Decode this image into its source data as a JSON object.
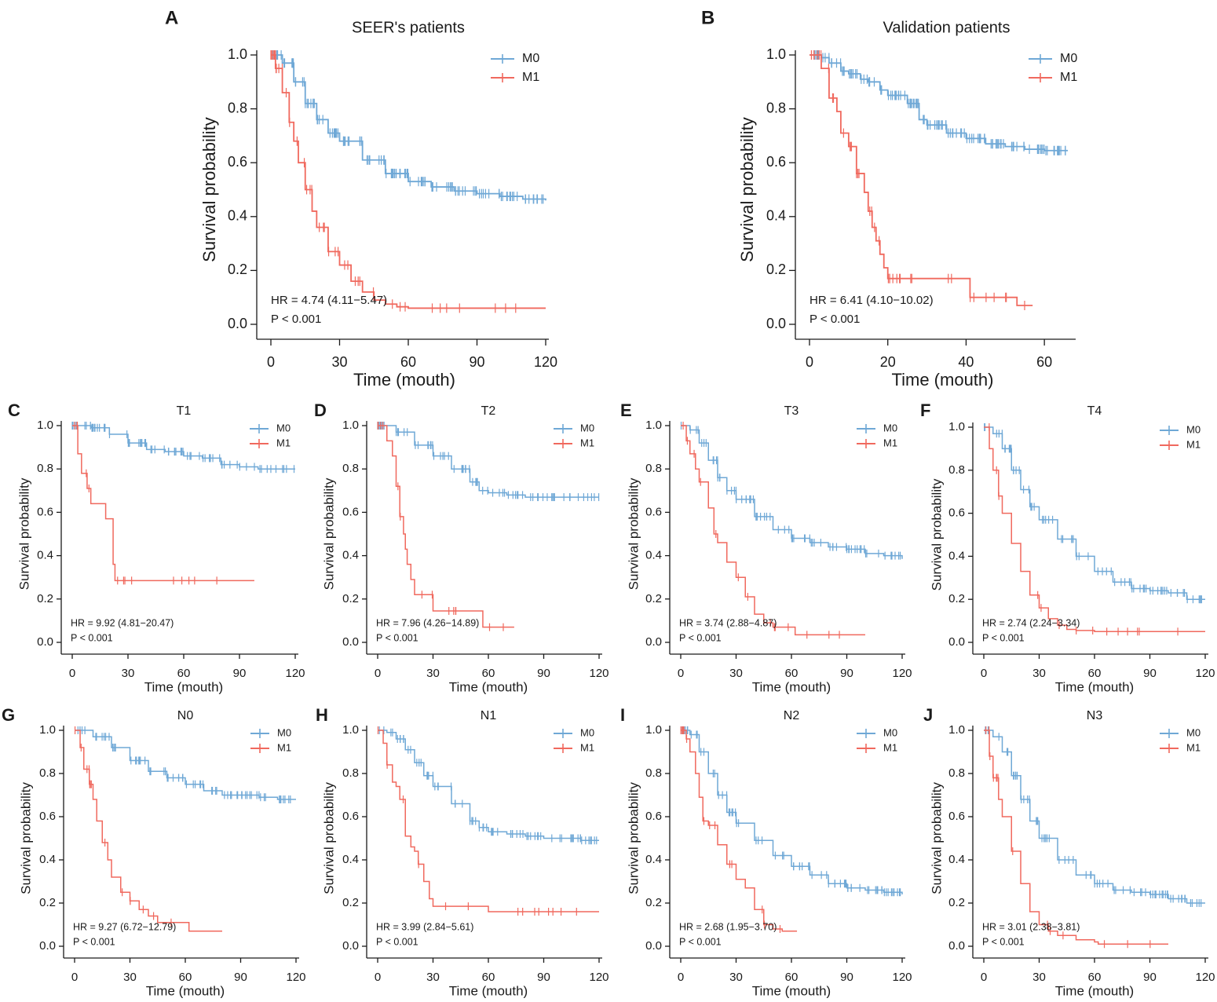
{
  "colors": {
    "m0": "#6fa8d6",
    "m1": "#f0695e",
    "axis": "#1a1a1a"
  },
  "chart_data": [
    {
      "id": "A",
      "type": "line",
      "title": "SEER's patients",
      "xlabel": "Time (mouth)",
      "ylabel": "Survival probability",
      "xlim": [
        0,
        120
      ],
      "ylim": [
        0,
        1
      ],
      "xticks": [
        "0",
        "30",
        "60",
        "90",
        "120"
      ],
      "yticks": [
        "0.0",
        "0.2",
        "0.4",
        "0.6",
        "0.8",
        "1.0"
      ],
      "hr": "HR = 4.74 (4.11−5.47)",
      "p": "P < 0.001",
      "series": [
        {
          "name": "M0",
          "x": [
            0,
            5,
            10,
            15,
            20,
            25,
            30,
            40,
            50,
            60,
            70,
            80,
            90,
            100,
            110,
            120
          ],
          "y": [
            1.0,
            0.97,
            0.9,
            0.82,
            0.76,
            0.71,
            0.68,
            0.61,
            0.56,
            0.53,
            0.51,
            0.495,
            0.485,
            0.475,
            0.465,
            0.46
          ]
        },
        {
          "name": "M1",
          "x": [
            0,
            2,
            5,
            8,
            10,
            12,
            15,
            18,
            20,
            25,
            30,
            35,
            40,
            45,
            50,
            55,
            60,
            120
          ],
          "y": [
            1.0,
            0.95,
            0.86,
            0.75,
            0.68,
            0.6,
            0.5,
            0.42,
            0.36,
            0.27,
            0.22,
            0.16,
            0.12,
            0.09,
            0.075,
            0.065,
            0.06,
            0.06
          ]
        }
      ]
    },
    {
      "id": "B",
      "type": "line",
      "title": "Validation patients",
      "xlabel": "Time (mouth)",
      "ylabel": "Survival probability",
      "xlim": [
        0,
        70
      ],
      "ylim": [
        0,
        1
      ],
      "xticks": [
        "0",
        "20",
        "40",
        "60"
      ],
      "yticks": [
        "0.0",
        "0.2",
        "0.4",
        "0.6",
        "0.8",
        "1.0"
      ],
      "hr": "HR = 6.41 (4.10−10.02)",
      "p": "P < 0.001",
      "series": [
        {
          "name": "M0",
          "x": [
            0,
            3,
            5,
            8,
            10,
            13,
            15,
            18,
            20,
            25,
            28,
            30,
            35,
            40,
            45,
            50,
            55,
            60,
            66
          ],
          "y": [
            1.0,
            0.99,
            0.97,
            0.94,
            0.93,
            0.91,
            0.9,
            0.87,
            0.85,
            0.82,
            0.76,
            0.74,
            0.71,
            0.69,
            0.67,
            0.66,
            0.65,
            0.645,
            0.645
          ]
        },
        {
          "name": "M1",
          "x": [
            0,
            3,
            5,
            7,
            8,
            10,
            12,
            14,
            15,
            16,
            17,
            18,
            19,
            20,
            25,
            30,
            40,
            41,
            52,
            53,
            57
          ],
          "y": [
            1.0,
            0.95,
            0.84,
            0.79,
            0.71,
            0.66,
            0.56,
            0.49,
            0.42,
            0.36,
            0.31,
            0.26,
            0.21,
            0.17,
            0.17,
            0.17,
            0.17,
            0.1,
            0.1,
            0.07,
            0.07
          ]
        }
      ]
    },
    {
      "id": "C",
      "type": "line",
      "title": "T1",
      "xlabel": "Time (mouth)",
      "ylabel": "Survival probability",
      "xlim": [
        0,
        120
      ],
      "ylim": [
        0,
        1
      ],
      "xticks": [
        "0",
        "30",
        "60",
        "90",
        "120"
      ],
      "yticks": [
        "0.0",
        "0.2",
        "0.4",
        "0.6",
        "0.8",
        "1.0"
      ],
      "hr": "HR = 9.92 (4.81−20.47)",
      "p": "P < 0.001",
      "series": [
        {
          "name": "M0",
          "x": [
            0,
            10,
            20,
            30,
            40,
            50,
            60,
            70,
            80,
            90,
            100,
            110,
            120
          ],
          "y": [
            1.0,
            0.99,
            0.96,
            0.92,
            0.89,
            0.88,
            0.86,
            0.85,
            0.82,
            0.81,
            0.8,
            0.8,
            0.8
          ]
        },
        {
          "name": "M1",
          "x": [
            0,
            3,
            5,
            8,
            10,
            12,
            15,
            18,
            20,
            22,
            23,
            98
          ],
          "y": [
            1.0,
            0.87,
            0.78,
            0.71,
            0.64,
            0.64,
            0.64,
            0.57,
            0.57,
            0.36,
            0.285,
            0.285
          ]
        }
      ]
    },
    {
      "id": "D",
      "type": "line",
      "title": "T2",
      "xlabel": "Time (mouth)",
      "ylabel": "Survival probability",
      "xlim": [
        0,
        120
      ],
      "ylim": [
        0,
        1
      ],
      "xticks": [
        "0",
        "30",
        "60",
        "90",
        "120"
      ],
      "yticks": [
        "0.0",
        "0.2",
        "0.4",
        "0.6",
        "0.8",
        "1.0"
      ],
      "hr": "HR = 7.96 (4.26−14.89)",
      "p": "P < 0.001",
      "series": [
        {
          "name": "M0",
          "x": [
            0,
            10,
            20,
            30,
            40,
            50,
            55,
            60,
            70,
            80,
            90,
            100,
            110,
            120
          ],
          "y": [
            1.0,
            0.97,
            0.91,
            0.86,
            0.8,
            0.74,
            0.7,
            0.69,
            0.68,
            0.67,
            0.67,
            0.67,
            0.67,
            0.67
          ]
        },
        {
          "name": "M1",
          "x": [
            0,
            5,
            8,
            10,
            12,
            14,
            15,
            16,
            18,
            20,
            25,
            30,
            40,
            50,
            56,
            57,
            74
          ],
          "y": [
            1.0,
            0.93,
            0.86,
            0.72,
            0.58,
            0.5,
            0.43,
            0.36,
            0.29,
            0.22,
            0.22,
            0.145,
            0.145,
            0.145,
            0.145,
            0.07,
            0.07
          ]
        }
      ]
    },
    {
      "id": "E",
      "type": "line",
      "title": "T3",
      "xlabel": "Time (mouth)",
      "ylabel": "Survival probability",
      "xlim": [
        0,
        120
      ],
      "ylim": [
        0,
        1
      ],
      "xticks": [
        "0",
        "30",
        "60",
        "90",
        "120"
      ],
      "yticks": [
        "0.0",
        "0.2",
        "0.4",
        "0.6",
        "0.8",
        "1.0"
      ],
      "hr": "HR = 3.74 (2.88−4.87)",
      "p": "P < 0.001",
      "series": [
        {
          "name": "M0",
          "x": [
            0,
            5,
            10,
            15,
            20,
            25,
            30,
            40,
            50,
            60,
            70,
            80,
            90,
            100,
            110,
            120
          ],
          "y": [
            1.0,
            0.98,
            0.92,
            0.84,
            0.76,
            0.7,
            0.66,
            0.58,
            0.52,
            0.48,
            0.46,
            0.44,
            0.43,
            0.41,
            0.4,
            0.385
          ]
        },
        {
          "name": "M1",
          "x": [
            0,
            3,
            5,
            8,
            10,
            15,
            18,
            20,
            25,
            30,
            35,
            40,
            45,
            50,
            55,
            60,
            62,
            100
          ],
          "y": [
            1.0,
            0.93,
            0.87,
            0.8,
            0.74,
            0.62,
            0.5,
            0.46,
            0.37,
            0.3,
            0.21,
            0.13,
            0.09,
            0.07,
            0.07,
            0.07,
            0.035,
            0.035
          ]
        }
      ]
    },
    {
      "id": "F",
      "type": "line",
      "title": "T4",
      "xlabel": "Time (mouth)",
      "ylabel": "Survival probability",
      "xlim": [
        0,
        120
      ],
      "ylim": [
        0,
        1
      ],
      "xticks": [
        "0",
        "30",
        "60",
        "90",
        "120"
      ],
      "yticks": [
        "0.0",
        "0.2",
        "0.4",
        "0.6",
        "0.8",
        "1.0"
      ],
      "hr": "HR = 2.74 (2.24−3.34)",
      "p": "P < 0.001",
      "series": [
        {
          "name": "M0",
          "x": [
            0,
            5,
            10,
            15,
            20,
            25,
            30,
            40,
            50,
            60,
            70,
            80,
            90,
            100,
            110,
            120
          ],
          "y": [
            1.0,
            0.97,
            0.9,
            0.8,
            0.71,
            0.63,
            0.57,
            0.48,
            0.4,
            0.33,
            0.28,
            0.25,
            0.24,
            0.23,
            0.2,
            0.2
          ]
        },
        {
          "name": "M1",
          "x": [
            0,
            3,
            5,
            8,
            10,
            15,
            20,
            25,
            30,
            35,
            40,
            45,
            50,
            60,
            100,
            120
          ],
          "y": [
            1.0,
            0.9,
            0.8,
            0.68,
            0.6,
            0.46,
            0.33,
            0.22,
            0.16,
            0.11,
            0.08,
            0.06,
            0.055,
            0.05,
            0.05,
            0.05
          ]
        }
      ]
    },
    {
      "id": "G",
      "type": "line",
      "title": "N0",
      "xlabel": "Time (mouth)",
      "ylabel": "Survival probability",
      "xlim": [
        0,
        120
      ],
      "ylim": [
        0,
        1
      ],
      "xticks": [
        "0",
        "30",
        "60",
        "90",
        "120"
      ],
      "yticks": [
        "0.0",
        "0.2",
        "0.4",
        "0.6",
        "0.8",
        "1.0"
      ],
      "hr": "HR = 9.27 (6.72−12.79)",
      "p": "P < 0.001",
      "series": [
        {
          "name": "M0",
          "x": [
            0,
            10,
            20,
            30,
            40,
            50,
            60,
            70,
            80,
            90,
            100,
            110,
            120
          ],
          "y": [
            1.0,
            0.97,
            0.92,
            0.86,
            0.81,
            0.78,
            0.75,
            0.72,
            0.7,
            0.7,
            0.69,
            0.68,
            0.68
          ]
        },
        {
          "name": "M1",
          "x": [
            0,
            3,
            5,
            8,
            10,
            12,
            15,
            18,
            20,
            25,
            30,
            35,
            40,
            45,
            60,
            62,
            80
          ],
          "y": [
            1.0,
            0.92,
            0.82,
            0.75,
            0.68,
            0.58,
            0.48,
            0.4,
            0.32,
            0.25,
            0.21,
            0.17,
            0.14,
            0.11,
            0.11,
            0.07,
            0.07
          ]
        }
      ]
    },
    {
      "id": "H",
      "type": "line",
      "title": "N1",
      "xlabel": "Time (mouth)",
      "ylabel": "Survival probability",
      "xlim": [
        0,
        120
      ],
      "ylim": [
        0,
        1
      ],
      "xticks": [
        "0",
        "30",
        "60",
        "90",
        "120"
      ],
      "yticks": [
        "0.0",
        "0.2",
        "0.4",
        "0.6",
        "0.8",
        "1.0"
      ],
      "hr": "HR = 3.99 (2.84−5.61)",
      "p": "P < 0.001",
      "series": [
        {
          "name": "M0",
          "x": [
            0,
            5,
            10,
            15,
            20,
            25,
            30,
            40,
            50,
            55,
            60,
            70,
            80,
            90,
            100,
            110,
            120
          ],
          "y": [
            1.0,
            0.99,
            0.96,
            0.91,
            0.85,
            0.79,
            0.74,
            0.66,
            0.58,
            0.55,
            0.53,
            0.52,
            0.51,
            0.5,
            0.5,
            0.49,
            0.49
          ]
        },
        {
          "name": "M1",
          "x": [
            0,
            3,
            5,
            8,
            10,
            12,
            15,
            18,
            20,
            22,
            25,
            28,
            30,
            60,
            100,
            120
          ],
          "y": [
            1.0,
            0.94,
            0.84,
            0.76,
            0.74,
            0.68,
            0.51,
            0.46,
            0.44,
            0.38,
            0.3,
            0.22,
            0.185,
            0.16,
            0.16,
            0.16
          ]
        }
      ]
    },
    {
      "id": "I",
      "type": "line",
      "title": "N2",
      "xlabel": "Time (mouth)",
      "ylabel": "Survival probability",
      "xlim": [
        0,
        120
      ],
      "ylim": [
        0,
        1
      ],
      "xticks": [
        "0",
        "30",
        "60",
        "90",
        "120"
      ],
      "yticks": [
        "0.0",
        "0.2",
        "0.4",
        "0.6",
        "0.8",
        "1.0"
      ],
      "hr": "HR = 2.68 (1.95−3.70)",
      "p": "P < 0.001",
      "series": [
        {
          "name": "M0",
          "x": [
            0,
            5,
            10,
            15,
            20,
            25,
            30,
            40,
            50,
            60,
            70,
            80,
            90,
            100,
            110,
            120
          ],
          "y": [
            1.0,
            0.98,
            0.9,
            0.8,
            0.7,
            0.62,
            0.57,
            0.49,
            0.42,
            0.37,
            0.33,
            0.29,
            0.27,
            0.26,
            0.25,
            0.24
          ]
        },
        {
          "name": "M1",
          "x": [
            0,
            3,
            5,
            8,
            10,
            12,
            15,
            20,
            25,
            30,
            35,
            40,
            45,
            50,
            55,
            63
          ],
          "y": [
            1.0,
            0.96,
            0.9,
            0.8,
            0.69,
            0.58,
            0.56,
            0.47,
            0.38,
            0.31,
            0.27,
            0.17,
            0.1,
            0.08,
            0.07,
            0.07
          ]
        }
      ]
    },
    {
      "id": "J",
      "type": "line",
      "title": "N3",
      "xlabel": "Time (mouth)",
      "ylabel": "Survival probability",
      "xlim": [
        0,
        120
      ],
      "ylim": [
        0,
        1
      ],
      "xticks": [
        "0",
        "30",
        "60",
        "90",
        "120"
      ],
      "yticks": [
        "0.0",
        "0.2",
        "0.4",
        "0.6",
        "0.8",
        "1.0"
      ],
      "hr": "HR = 3.01 (2.38−3.81)",
      "p": "P < 0.001",
      "series": [
        {
          "name": "M0",
          "x": [
            0,
            5,
            10,
            15,
            20,
            25,
            30,
            40,
            50,
            60,
            70,
            80,
            90,
            100,
            110,
            120
          ],
          "y": [
            1.0,
            0.97,
            0.9,
            0.79,
            0.68,
            0.58,
            0.5,
            0.4,
            0.33,
            0.29,
            0.26,
            0.25,
            0.24,
            0.22,
            0.2,
            0.2
          ]
        },
        {
          "name": "M1",
          "x": [
            0,
            3,
            5,
            8,
            10,
            15,
            20,
            25,
            30,
            35,
            40,
            50,
            60,
            62,
            100
          ],
          "y": [
            1.0,
            0.88,
            0.78,
            0.68,
            0.6,
            0.44,
            0.29,
            0.16,
            0.1,
            0.07,
            0.05,
            0.03,
            0.02,
            0.01,
            0.01
          ]
        }
      ]
    }
  ]
}
